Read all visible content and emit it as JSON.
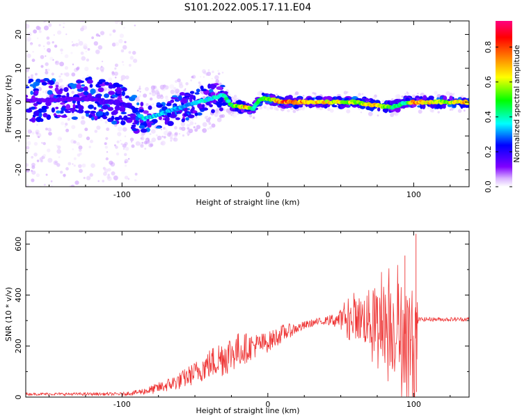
{
  "title": "S101.2022.005.17.11.E04",
  "chart_data": [
    {
      "type": "heatmap",
      "xlabel": "Height of straight line (km)",
      "ylabel": "Frequency (Hz)",
      "xlim": [
        -166,
        138
      ],
      "ylim": [
        -25,
        24
      ],
      "xticks": [
        -100,
        0,
        100
      ],
      "yticks": [
        -20,
        -10,
        0,
        10,
        20
      ],
      "colorbar": {
        "label": "Normalized spectral amplitude",
        "range": [
          0,
          0.95
        ],
        "ticks": [
          "0.0",
          "0.2",
          "0.4",
          "0.6",
          "0.8"
        ],
        "tick_values": [
          0,
          0.2,
          0.4,
          0.6,
          0.8
        ],
        "colors": [
          "#ffffff",
          "#d9b3ff",
          "#8000ff",
          "#0000ff",
          "#00ffff",
          "#00ff00",
          "#ffff00",
          "#ff8000",
          "#ff0000",
          "#ff0080"
        ]
      },
      "ridge": [
        {
          "x": -166,
          "y": 0.5,
          "amp": 0.15
        },
        {
          "x": -120,
          "y": 1.0,
          "amp": 0.15
        },
        {
          "x": -95,
          "y": -1.0,
          "amp": 0.2
        },
        {
          "x": -85,
          "y": -5.0,
          "amp": 0.4
        },
        {
          "x": -70,
          "y": -3.0,
          "amp": 0.35
        },
        {
          "x": -55,
          "y": -1.0,
          "amp": 0.35
        },
        {
          "x": -40,
          "y": 1.0,
          "amp": 0.4
        },
        {
          "x": -30,
          "y": 2.0,
          "amp": 0.4
        },
        {
          "x": -25,
          "y": -1.0,
          "amp": 0.5
        },
        {
          "x": -15,
          "y": -1.5,
          "amp": 0.75
        },
        {
          "x": -10,
          "y": -2.0,
          "amp": 0.45
        },
        {
          "x": -5,
          "y": 1.0,
          "amp": 0.5
        },
        {
          "x": 0,
          "y": 1.0,
          "amp": 0.55
        },
        {
          "x": 10,
          "y": 0.0,
          "amp": 0.85
        },
        {
          "x": 20,
          "y": 0.0,
          "amp": 0.8
        },
        {
          "x": 40,
          "y": 0.0,
          "amp": 0.7
        },
        {
          "x": 60,
          "y": 0.0,
          "amp": 0.6
        },
        {
          "x": 75,
          "y": -1.0,
          "amp": 0.75
        },
        {
          "x": 85,
          "y": -1.5,
          "amp": 0.5
        },
        {
          "x": 95,
          "y": 0.0,
          "amp": 0.4
        },
        {
          "x": 100,
          "y": 0.0,
          "amp": 0.8
        },
        {
          "x": 120,
          "y": 0.0,
          "amp": 0.6
        },
        {
          "x": 138,
          "y": 0.0,
          "amp": 0.75
        }
      ]
    },
    {
      "type": "line",
      "xlabel": "Height of straight line (km)",
      "ylabel": "SNR (10 * v/v)",
      "xlim": [
        -166,
        138
      ],
      "ylim": [
        0,
        650
      ],
      "xticks": [
        -100,
        0,
        100
      ],
      "yticks": [
        0,
        200,
        400,
        600
      ],
      "color": "#ee3333",
      "baseline": {
        "x": [
          -166,
          -100,
          -90,
          -80,
          -70,
          -60,
          -50,
          -40,
          -30,
          -20,
          -10,
          0,
          10,
          20,
          30,
          40,
          50,
          60,
          70,
          80,
          90,
          100,
          102,
          103,
          110,
          120,
          130,
          138
        ],
        "y": [
          12,
          12,
          18,
          28,
          45,
          65,
          95,
          130,
          160,
          185,
          200,
          215,
          250,
          270,
          290,
          300,
          305,
          310,
          305,
          290,
          260,
          230,
          230,
          305,
          305,
          305,
          305,
          305
        ]
      },
      "noise": {
        "x": [
          -166,
          -100,
          -90,
          -80,
          -70,
          -60,
          -50,
          -40,
          -30,
          -20,
          -10,
          0,
          10,
          20,
          30,
          40,
          50,
          60,
          70,
          80,
          90,
          100,
          102,
          103,
          110,
          120,
          130,
          138
        ],
        "y": [
          5,
          6,
          10,
          18,
          25,
          35,
          45,
          60,
          80,
          70,
          50,
          40,
          35,
          20,
          15,
          15,
          40,
          80,
          120,
          160,
          200,
          200,
          220,
          8,
          8,
          8,
          8,
          8
        ]
      },
      "spikes": [
        {
          "x": 94.0,
          "y": 555
        },
        {
          "x": 101.6,
          "y": 640
        },
        {
          "x": 101.9,
          "y": 20
        }
      ]
    }
  ]
}
